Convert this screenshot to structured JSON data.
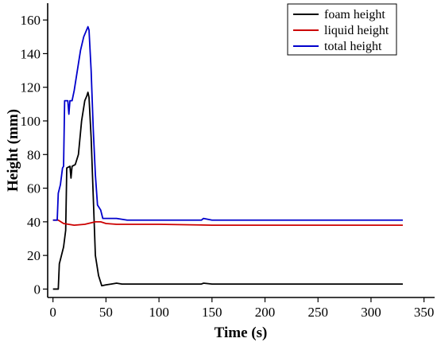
{
  "chart_data": {
    "type": "line",
    "xlabel": "Time (s)",
    "ylabel": "Height (mm)",
    "xlim": [
      -5,
      360
    ],
    "ylim": [
      -5,
      170
    ],
    "xticks": [
      0,
      50,
      100,
      150,
      200,
      250,
      300,
      350
    ],
    "yticks": [
      0,
      20,
      40,
      60,
      80,
      100,
      120,
      140,
      160
    ],
    "grid": false,
    "legend_position": "top-right",
    "series": [
      {
        "name": "foam height",
        "color": "#000000",
        "points": [
          [
            0,
            0
          ],
          [
            5,
            0
          ],
          [
            6,
            15
          ],
          [
            8,
            20
          ],
          [
            10,
            25
          ],
          [
            12,
            35
          ],
          [
            13,
            72
          ],
          [
            16,
            73
          ],
          [
            17,
            66
          ],
          [
            18,
            73
          ],
          [
            21,
            74
          ],
          [
            24,
            80
          ],
          [
            27,
            100
          ],
          [
            30,
            112
          ],
          [
            32,
            115
          ],
          [
            33,
            117
          ],
          [
            34,
            114
          ],
          [
            36,
            90
          ],
          [
            38,
            55
          ],
          [
            40,
            20
          ],
          [
            43,
            8
          ],
          [
            46,
            2
          ],
          [
            50,
            2.5
          ],
          [
            55,
            3
          ],
          [
            60,
            3.5
          ],
          [
            65,
            3
          ],
          [
            80,
            3
          ],
          [
            100,
            3
          ],
          [
            140,
            3
          ],
          [
            142,
            3.5
          ],
          [
            150,
            3
          ],
          [
            200,
            3
          ],
          [
            250,
            3
          ],
          [
            330,
            3
          ]
        ]
      },
      {
        "name": "liquid height",
        "color": "#cc0000",
        "points": [
          [
            0,
            41
          ],
          [
            5,
            41
          ],
          [
            10,
            39
          ],
          [
            20,
            38
          ],
          [
            30,
            38.5
          ],
          [
            40,
            40
          ],
          [
            45,
            40
          ],
          [
            50,
            39
          ],
          [
            60,
            38.5
          ],
          [
            100,
            38.5
          ],
          [
            150,
            38
          ],
          [
            200,
            38
          ],
          [
            250,
            38
          ],
          [
            330,
            38
          ]
        ]
      },
      {
        "name": "total height",
        "color": "#0000cc",
        "points": [
          [
            0,
            41
          ],
          [
            4,
            41
          ],
          [
            5,
            57
          ],
          [
            7,
            62
          ],
          [
            9,
            72
          ],
          [
            10,
            73
          ],
          [
            11,
            112
          ],
          [
            14,
            112
          ],
          [
            15,
            104
          ],
          [
            16,
            112
          ],
          [
            18,
            112
          ],
          [
            20,
            118
          ],
          [
            23,
            130
          ],
          [
            26,
            142
          ],
          [
            29,
            150
          ],
          [
            31,
            153
          ],
          [
            33,
            156
          ],
          [
            34,
            154
          ],
          [
            36,
            130
          ],
          [
            38,
            95
          ],
          [
            40,
            68
          ],
          [
            42,
            50
          ],
          [
            45,
            47
          ],
          [
            47,
            42
          ],
          [
            50,
            42
          ],
          [
            60,
            42
          ],
          [
            70,
            41
          ],
          [
            100,
            41
          ],
          [
            140,
            41
          ],
          [
            142,
            42
          ],
          [
            150,
            41
          ],
          [
            200,
            41
          ],
          [
            250,
            41
          ],
          [
            330,
            41
          ]
        ]
      }
    ]
  }
}
